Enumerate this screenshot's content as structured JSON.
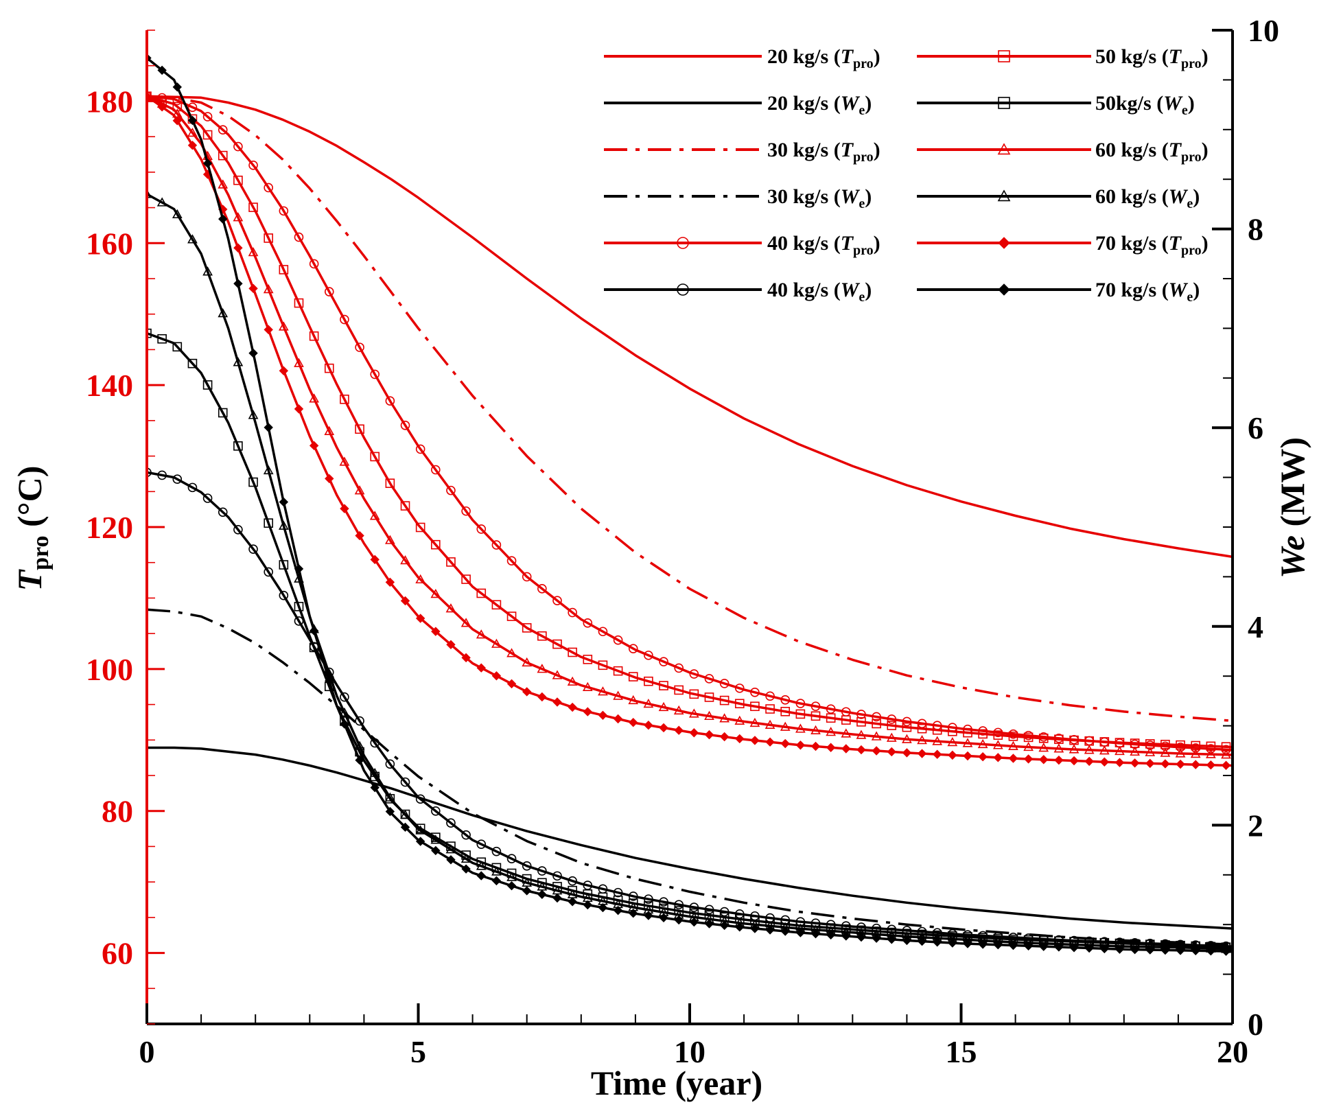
{
  "chart_data": {
    "type": "line",
    "xlabel": "Time (year)",
    "ylabel_left": {
      "symbol": "T",
      "subscript": "pro",
      "unit": " (°C)"
    },
    "ylabel_right": {
      "symbol": "We",
      "unit": " (MW)"
    },
    "xlim": [
      0,
      20
    ],
    "ylim_left": [
      50,
      190
    ],
    "ylim_right": [
      0,
      10
    ],
    "x_ticks": [
      "0",
      "5",
      "10",
      "15",
      "20"
    ],
    "y_left_ticks": [
      "60",
      "80",
      "100",
      "120",
      "140",
      "160",
      "180"
    ],
    "y_right_ticks": [
      "0",
      "2",
      "4",
      "6",
      "8",
      "10"
    ],
    "colors": {
      "temperature": "#e60000",
      "power": "#000000"
    },
    "x": [
      0,
      0.5,
      1,
      1.5,
      2,
      2.5,
      3,
      3.5,
      4,
      4.5,
      5,
      6,
      7,
      8,
      9,
      10,
      11,
      12,
      13,
      14,
      15,
      16,
      17,
      18,
      19,
      20
    ],
    "series": [
      {
        "name": "20 kg/s (Tpro)",
        "axis": "left",
        "dash": "solid",
        "marker": "none",
        "label": {
          "rate": "20 kg/s (",
          "sym": "T",
          "sub": "pro",
          "close": ")"
        },
        "values": [
          180.7,
          180.6,
          180.5,
          179.8,
          178.8,
          177.4,
          175.7,
          173.7,
          171.4,
          169.0,
          166.4,
          160.8,
          155.0,
          149.4,
          144.2,
          139.5,
          135.3,
          131.7,
          128.6,
          125.9,
          123.6,
          121.6,
          119.8,
          118.3,
          117.0,
          115.8
        ]
      },
      {
        "name": "20 kg/s (We)",
        "axis": "right",
        "dash": "solid",
        "marker": "none",
        "label": {
          "rate": "20 kg/s (",
          "sym": "W",
          "sub": "e",
          "close": ")"
        },
        "values": [
          2.78,
          2.78,
          2.77,
          2.74,
          2.71,
          2.66,
          2.6,
          2.53,
          2.45,
          2.37,
          2.28,
          2.1,
          1.94,
          1.8,
          1.67,
          1.56,
          1.46,
          1.37,
          1.29,
          1.22,
          1.16,
          1.11,
          1.06,
          1.02,
          0.99,
          0.96
        ]
      },
      {
        "name": "30 kg/s (Tpro)",
        "axis": "left",
        "dash": "dashdot",
        "marker": "none",
        "label": {
          "rate": "30 kg/s (",
          "sym": "T",
          "sub": "pro",
          "close": ")"
        },
        "values": [
          180.7,
          180.5,
          179.8,
          177.9,
          175.2,
          171.8,
          167.7,
          163.1,
          158.2,
          153.1,
          148.0,
          138.5,
          130.0,
          122.6,
          116.4,
          111.3,
          107.2,
          103.9,
          101.3,
          99.1,
          97.4,
          96.0,
          94.9,
          94.0,
          93.3,
          92.7
        ]
      },
      {
        "name": "30 kg/s (We)",
        "axis": "right",
        "dash": "dashdot",
        "marker": "none",
        "label": {
          "rate": "30 kg/s (",
          "sym": "W",
          "sub": "e",
          "close": ")"
        },
        "values": [
          4.17,
          4.15,
          4.1,
          3.98,
          3.83,
          3.64,
          3.43,
          3.2,
          2.96,
          2.72,
          2.49,
          2.12,
          1.84,
          1.62,
          1.46,
          1.33,
          1.22,
          1.13,
          1.06,
          1.0,
          0.95,
          0.91,
          0.87,
          0.84,
          0.82,
          0.8
        ]
      },
      {
        "name": "40 kg/s (Tpro)",
        "axis": "left",
        "dash": "solid",
        "marker": "circle",
        "label": {
          "rate": "40 kg/s (",
          "sym": "T",
          "sub": "pro",
          "close": ")"
        },
        "values": [
          180.7,
          180.3,
          178.6,
          175.3,
          170.6,
          164.8,
          158.2,
          151.2,
          144.2,
          137.5,
          131.4,
          121.0,
          113.0,
          107.0,
          102.7,
          99.5,
          97.1,
          95.2,
          93.8,
          92.6,
          91.6,
          90.8,
          90.1,
          89.5,
          89.0,
          88.6
        ]
      },
      {
        "name": "40 kg/s (We)",
        "axis": "right",
        "dash": "solid",
        "marker": "circle",
        "label": {
          "rate": "40 kg/s (",
          "sym": "W",
          "sub": "e",
          "close": ")"
        },
        "values": [
          5.55,
          5.5,
          5.35,
          5.1,
          4.75,
          4.33,
          3.87,
          3.41,
          2.98,
          2.6,
          2.28,
          1.85,
          1.59,
          1.41,
          1.28,
          1.18,
          1.1,
          1.03,
          0.98,
          0.94,
          0.9,
          0.87,
          0.84,
          0.82,
          0.8,
          0.78
        ]
      },
      {
        "name": "50 kg/s (Tpro)",
        "axis": "left",
        "dash": "solid",
        "marker": "square",
        "label": {
          "rate": "50 kg/s (",
          "sym": "T",
          "sub": "pro",
          "close": ")"
        },
        "values": [
          180.7,
          179.6,
          176.5,
          171.3,
          164.5,
          156.6,
          148.2,
          140.1,
          132.6,
          125.9,
          120.3,
          111.6,
          105.8,
          101.7,
          98.8,
          96.6,
          95.0,
          93.7,
          92.7,
          91.8,
          91.1,
          90.5,
          90.0,
          89.6,
          89.3,
          89.0
        ]
      },
      {
        "name": "50kg/s (We)",
        "axis": "right",
        "dash": "solid",
        "marker": "square",
        "label": {
          "rate": "50kg/s (",
          "sym": "W",
          "sub": "e",
          "close": ")"
        },
        "values": [
          6.95,
          6.85,
          6.55,
          6.05,
          5.4,
          4.65,
          3.9,
          3.2,
          2.65,
          2.25,
          1.98,
          1.66,
          1.46,
          1.32,
          1.21,
          1.12,
          1.05,
          0.99,
          0.95,
          0.91,
          0.88,
          0.85,
          0.83,
          0.81,
          0.79,
          0.77
        ]
      },
      {
        "name": "60 kg/s (Tpro)",
        "axis": "left",
        "dash": "solid",
        "marker": "triangle",
        "label": {
          "rate": "60 kg/s (",
          "sym": "T",
          "sub": "pro",
          "close": ")"
        },
        "values": [
          180.7,
          178.8,
          174.0,
          166.8,
          158.0,
          148.6,
          139.4,
          131.2,
          124.0,
          117.9,
          112.9,
          105.6,
          100.9,
          97.7,
          95.5,
          93.8,
          92.6,
          91.6,
          90.8,
          90.1,
          89.6,
          89.1,
          88.7,
          88.4,
          88.1,
          87.9
        ]
      },
      {
        "name": "60 kg/s (We)",
        "axis": "right",
        "dash": "solid",
        "marker": "triangle",
        "label": {
          "rate": "60 kg/s (",
          "sym": "W",
          "sub": "e",
          "close": ")"
        },
        "values": [
          8.35,
          8.2,
          7.75,
          7.0,
          6.05,
          5.05,
          4.1,
          3.3,
          2.7,
          2.26,
          1.96,
          1.62,
          1.42,
          1.28,
          1.17,
          1.08,
          1.01,
          0.96,
          0.92,
          0.88,
          0.85,
          0.82,
          0.8,
          0.78,
          0.77,
          0.75
        ]
      },
      {
        "name": "70 kg/s (Tpro)",
        "axis": "left",
        "dash": "solid",
        "marker": "diamond",
        "label": {
          "rate": "70 kg/s (",
          "sym": "T",
          "sub": "pro",
          "close": ")"
        },
        "values": [
          180.7,
          178.0,
          171.8,
          163.0,
          152.8,
          142.4,
          132.8,
          124.5,
          117.7,
          112.0,
          107.4,
          100.8,
          96.8,
          94.2,
          92.4,
          91.1,
          90.1,
          89.3,
          88.7,
          88.2,
          87.8,
          87.4,
          87.1,
          86.8,
          86.6,
          86.4
        ]
      },
      {
        "name": "70 kg/s (We)",
        "axis": "right",
        "dash": "solid",
        "marker": "diamond",
        "label": {
          "rate": "70 kg/s (",
          "sym": "W",
          "sub": "e",
          "close": ")"
        },
        "values": [
          9.72,
          9.5,
          8.9,
          7.9,
          6.65,
          5.3,
          4.1,
          3.2,
          2.55,
          2.12,
          1.85,
          1.52,
          1.34,
          1.21,
          1.11,
          1.03,
          0.97,
          0.92,
          0.88,
          0.84,
          0.81,
          0.79,
          0.77,
          0.75,
          0.74,
          0.73
        ]
      }
    ]
  }
}
